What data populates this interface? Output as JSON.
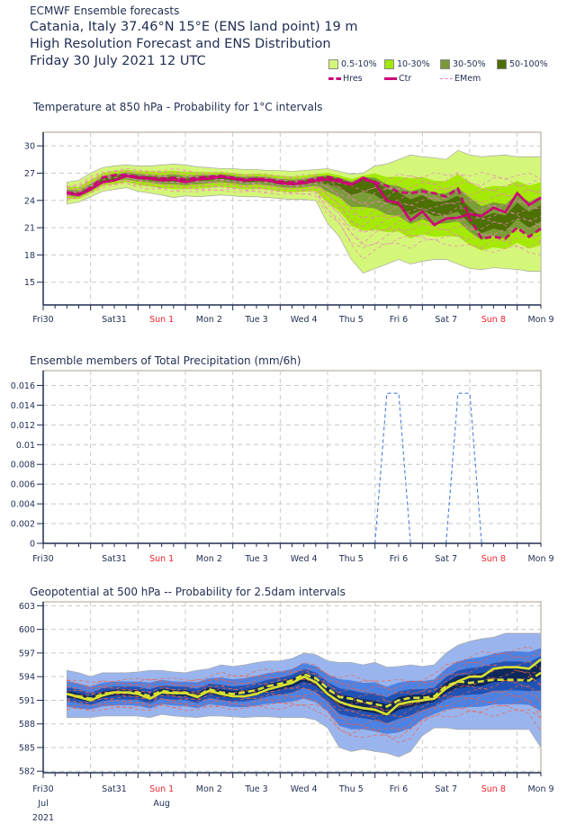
{
  "header": {
    "source": "ECMWF Ensemble forecasts",
    "location": "Catania, Italy 37.46°N 15°E (ENS land point) 19 m",
    "product": "High Resolution Forecast and ENS Distribution",
    "date": "Friday 30 July 2021 12 UTC"
  },
  "legend": {
    "probability_bins": [
      {
        "label": "0.5-10%",
        "color": "#d4f77a"
      },
      {
        "label": "10-30%",
        "color": "#a2e800"
      },
      {
        "label": "30-50%",
        "color": "#78993a"
      },
      {
        "label": "50-100%",
        "color": "#4a6e00"
      }
    ],
    "lines": [
      {
        "label": "Hres",
        "style": "dashed",
        "color": "#cc0077"
      },
      {
        "label": "Ctr",
        "style": "solid",
        "color": "#cc0077"
      },
      {
        "label": "EMem",
        "style": "dashed-thin",
        "color": "#f080c0"
      }
    ]
  },
  "x_axis": {
    "days": [
      {
        "label": "Fri30",
        "weekend": false
      },
      {
        "label": "Sat31",
        "weekend": false
      },
      {
        "label": "Sun 1",
        "weekend": true
      },
      {
        "label": "Mon 2",
        "weekend": false
      },
      {
        "label": "Tue 3",
        "weekend": false
      },
      {
        "label": "Wed 4",
        "weekend": false
      },
      {
        "label": "Thu 5",
        "weekend": false
      },
      {
        "label": "Fri 6",
        "weekend": false
      },
      {
        "label": "Sat 7",
        "weekend": false
      },
      {
        "label": "Sun 8",
        "weekend": true
      },
      {
        "label": "Mon 9",
        "weekend": false
      }
    ],
    "month_labels": [
      "Jul",
      "Aug"
    ],
    "year_label": "2021"
  },
  "chart_data": [
    {
      "type": "area",
      "title": "Temperature at 850 hPa - Probability for 1°C intervals",
      "ylabel": "°C",
      "ylim": [
        12.5,
        31.5
      ],
      "yticks": [
        15,
        18,
        21,
        24,
        27,
        30
      ],
      "grid": true,
      "x_unit": "forecast step (6h), 0 = Fri30 12 UTC",
      "x": [
        0,
        1,
        2,
        3,
        4,
        5,
        6,
        7,
        8,
        9,
        10,
        11,
        12,
        13,
        14,
        15,
        16,
        17,
        18,
        19,
        20,
        21,
        22,
        23,
        24,
        25,
        26,
        27,
        28,
        29,
        30,
        31,
        32,
        33,
        34,
        35,
        36,
        37,
        38,
        39,
        40
      ],
      "series": [
        {
          "name": "Hres",
          "values": [
            24.9,
            24.7,
            25.4,
            26.5,
            26.8,
            26.8,
            26.6,
            26.5,
            26.4,
            26.5,
            26.3,
            26.5,
            26.6,
            26.7,
            26.5,
            26.3,
            26.4,
            26.3,
            26.1,
            26.0,
            26.1,
            26.4,
            26.6,
            26.3,
            25.8,
            26.3,
            26.0,
            25.6,
            24.9,
            24.8,
            25.0,
            24.8,
            24.4,
            25.3,
            22.0,
            19.8,
            20.0,
            19.8,
            21.0,
            20.0,
            20.9
          ]
        },
        {
          "name": "Ctr",
          "values": [
            24.8,
            24.6,
            25.2,
            26.0,
            26.2,
            26.7,
            26.5,
            26.4,
            26.2,
            26.3,
            26.0,
            26.3,
            26.4,
            26.6,
            26.4,
            26.2,
            26.3,
            26.2,
            25.9,
            25.8,
            25.9,
            26.2,
            26.3,
            26.1,
            25.7,
            26.5,
            25.9,
            24.0,
            23.7,
            21.8,
            22.8,
            21.3,
            22.0,
            22.1,
            22.5,
            22.3,
            23.2,
            22.7,
            24.8,
            23.5,
            24.3
          ]
        },
        {
          "name": "ENS 0.5-10% envelope low",
          "values": [
            23.6,
            23.8,
            24.4,
            25.0,
            25.2,
            25.4,
            25.0,
            24.8,
            24.6,
            24.3,
            24.5,
            24.4,
            24.5,
            24.6,
            24.5,
            24.4,
            24.4,
            24.3,
            24.2,
            24.1,
            24.1,
            24.0,
            21.5,
            20.0,
            17.5,
            16.0,
            16.5,
            17.0,
            17.5,
            17.0,
            17.3,
            17.5,
            17.5,
            17.0,
            16.5,
            16.4,
            16.6,
            16.5,
            16.4,
            16.2,
            16.2
          ]
        },
        {
          "name": "ENS 0.5-10% envelope high",
          "values": [
            26.0,
            26.2,
            27.0,
            27.6,
            27.8,
            27.9,
            27.8,
            27.8,
            27.9,
            28.0,
            27.9,
            27.7,
            27.6,
            27.5,
            27.5,
            27.4,
            27.4,
            27.3,
            27.3,
            27.2,
            27.3,
            27.4,
            27.5,
            27.2,
            26.9,
            27.0,
            27.8,
            28.0,
            28.5,
            29.0,
            28.8,
            28.7,
            28.5,
            29.5,
            29.0,
            28.8,
            28.9,
            29.0,
            28.8,
            28.8,
            28.8
          ]
        }
      ]
    },
    {
      "type": "line",
      "title": "Ensemble members of Total Precipitation (mm/6h)",
      "ylabel": "mm/6h",
      "ylim": [
        0,
        0.0175
      ],
      "yticks": [
        0,
        0.002,
        0.004,
        0.006,
        0.008,
        0.01,
        0.012,
        0.014,
        0.016
      ],
      "ytick_labels": [
        "0",
        "0.002",
        "0.004",
        "0.006",
        "0.008",
        "0.01",
        "0.012",
        "0.014",
        "0.016"
      ],
      "grid": true,
      "x_unit": "forecast step (6h), 0 = Fri30 12 UTC",
      "series": [
        {
          "name": "ensemble member (non-zero)",
          "x": [
            26,
            27,
            28,
            29
          ],
          "values": [
            0,
            0.0152,
            0.0152,
            0
          ]
        },
        {
          "name": "ensemble member (non-zero)",
          "x": [
            32,
            33,
            34,
            35
          ],
          "values": [
            0,
            0.0152,
            0.0152,
            0
          ]
        }
      ]
    },
    {
      "type": "area",
      "title": "Geopotential at 500 hPa -- Probability for 2.5dam intervals",
      "ylabel": "dam",
      "ylim": [
        581.8,
        603.5
      ],
      "yticks": [
        582,
        585,
        588,
        591,
        594,
        597,
        600,
        603
      ],
      "grid": true,
      "x_unit": "forecast step (6h), 0 = Fri30 12 UTC",
      "x": [
        0,
        1,
        2,
        3,
        4,
        5,
        6,
        7,
        8,
        9,
        10,
        11,
        12,
        13,
        14,
        15,
        16,
        17,
        18,
        19,
        20,
        21,
        22,
        23,
        24,
        25,
        26,
        27,
        28,
        29,
        30,
        31,
        32,
        33,
        34,
        35,
        36,
        37,
        38,
        39,
        40
      ],
      "series": [
        {
          "name": "Hres",
          "values": [
            591.8,
            591.5,
            591.2,
            591.8,
            592.0,
            592.0,
            592.0,
            591.5,
            592.2,
            592.0,
            592.0,
            591.5,
            592.4,
            592.0,
            591.8,
            592.0,
            592.3,
            592.8,
            593.1,
            593.5,
            594.3,
            593.8,
            592.5,
            591.4,
            591.2,
            590.8,
            590.5,
            590.2,
            591.0,
            591.3,
            591.3,
            591.5,
            592.8,
            593.4,
            593.2,
            593.4,
            593.6,
            593.6,
            593.6,
            593.5,
            594.5
          ]
        },
        {
          "name": "Ctr",
          "values": [
            591.8,
            591.4,
            591.0,
            591.6,
            592.0,
            592.0,
            591.8,
            591.2,
            592.0,
            591.9,
            591.9,
            591.4,
            592.2,
            591.8,
            591.5,
            591.5,
            591.8,
            592.4,
            592.8,
            593.2,
            594.0,
            593.3,
            591.8,
            590.8,
            590.3,
            590.0,
            589.8,
            589.2,
            590.5,
            590.8,
            591.0,
            591.2,
            592.5,
            593.4,
            594.0,
            594.0,
            595.0,
            595.2,
            595.2,
            595.0,
            596.2
          ]
        },
        {
          "name": "ENS 0.5-10% envelope low",
          "values": [
            588.8,
            588.8,
            588.8,
            589.0,
            589.0,
            589.0,
            589.0,
            588.8,
            589.2,
            589.0,
            588.9,
            588.8,
            589.0,
            589.0,
            588.9,
            588.8,
            588.9,
            588.9,
            588.8,
            588.8,
            588.8,
            588.5,
            587.5,
            585.0,
            584.5,
            584.8,
            584.5,
            584.3,
            583.8,
            584.5,
            586.5,
            587.5,
            587.5,
            587.3,
            587.3,
            587.3,
            587.3,
            587.3,
            587.3,
            587.3,
            585.0
          ]
        },
        {
          "name": "ENS 0.5-10% envelope high",
          "values": [
            594.8,
            594.5,
            594.0,
            594.5,
            594.5,
            594.5,
            594.6,
            594.8,
            594.8,
            594.6,
            594.5,
            594.8,
            595.0,
            595.5,
            595.3,
            595.5,
            595.8,
            596.0,
            596.0,
            596.3,
            597.0,
            596.8,
            596.0,
            595.8,
            595.8,
            595.5,
            595.8,
            595.2,
            595.3,
            595.5,
            595.3,
            595.5,
            597.0,
            598.0,
            598.5,
            598.8,
            599.0,
            599.5,
            599.5,
            599.5,
            599.5
          ]
        }
      ]
    }
  ]
}
